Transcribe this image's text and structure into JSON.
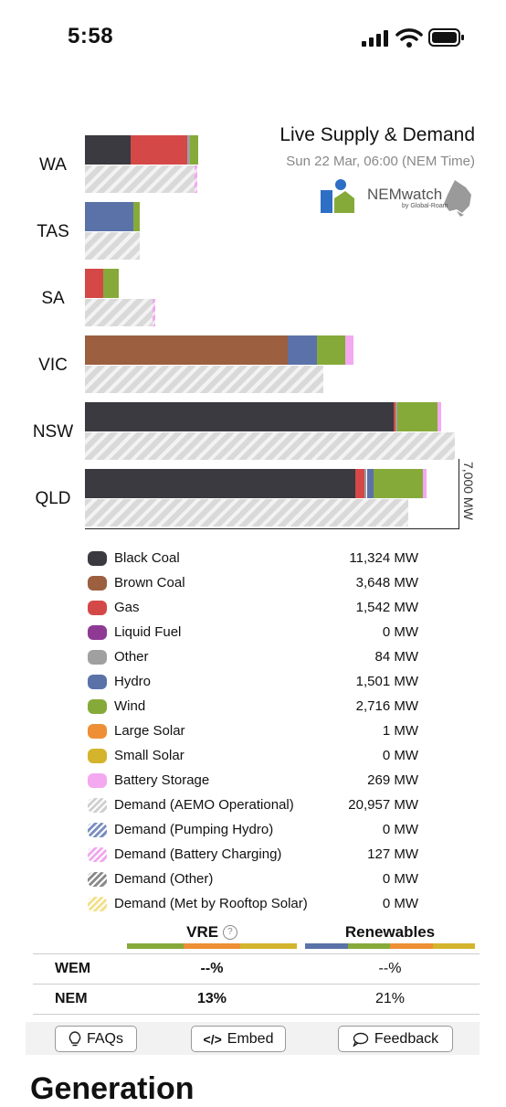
{
  "status_bar": {
    "time": "5:58"
  },
  "chart": {
    "title": "Live Supply & Demand",
    "subtitle": "Sun 22 Mar, 06:00 (NEM Time)",
    "logo_text": "NEMwatch",
    "logo_sub": "by Global-Roam",
    "axis_label": "7,000 MW",
    "colors": {
      "black_coal": "#3a3a40",
      "brown_coal": "#9c5f3f",
      "gas": "#d44848",
      "liquid_fuel": "#8e3a94",
      "other": "#a0a0a0",
      "hydro": "#5a72a8",
      "wind": "#86aa3a",
      "large_solar": "#ee8f35",
      "small_solar": "#d4b42c",
      "battery": "#f3a8f0"
    }
  },
  "chart_data": {
    "type": "bar",
    "axis_max_mw": 7000,
    "categories": [
      "WA",
      "TAS",
      "SA",
      "VIC",
      "NSW",
      "QLD"
    ],
    "supply": [
      {
        "region": "WA",
        "segments": [
          {
            "fuel": "black_coal",
            "mw": 860
          },
          {
            "fuel": "gas",
            "mw": 1060
          },
          {
            "fuel": "other",
            "mw": 40
          },
          {
            "fuel": "wind",
            "mw": 160
          }
        ]
      },
      {
        "region": "TAS",
        "segments": [
          {
            "fuel": "hydro",
            "mw": 900
          },
          {
            "fuel": "wind",
            "mw": 120
          }
        ]
      },
      {
        "region": "SA",
        "segments": [
          {
            "fuel": "gas",
            "mw": 340
          },
          {
            "fuel": "wind",
            "mw": 290
          }
        ]
      },
      {
        "region": "VIC",
        "segments": [
          {
            "fuel": "brown_coal",
            "mw": 3800
          },
          {
            "fuel": "hydro",
            "mw": 540
          },
          {
            "fuel": "wind",
            "mw": 540
          },
          {
            "fuel": "battery",
            "mw": 150
          }
        ]
      },
      {
        "region": "NSW",
        "segments": [
          {
            "fuel": "black_coal",
            "mw": 5780
          },
          {
            "fuel": "gas",
            "mw": 40
          },
          {
            "fuel": "other",
            "mw": 30
          },
          {
            "fuel": "wind",
            "mw": 760
          },
          {
            "fuel": "battery",
            "mw": 60
          }
        ]
      },
      {
        "region": "QLD",
        "segments": [
          {
            "fuel": "black_coal",
            "mw": 5060
          },
          {
            "fuel": "gas",
            "mw": 170
          },
          {
            "fuel": "other",
            "mw": 50
          },
          {
            "fuel": "hydro",
            "mw": 130
          },
          {
            "fuel": "wind",
            "mw": 930
          },
          {
            "fuel": "battery",
            "mw": 60
          }
        ]
      }
    ],
    "demand": [
      {
        "region": "WA",
        "mw": 2050,
        "battery_charging_mw": 60
      },
      {
        "region": "TAS",
        "mw": 1020,
        "battery_charging_mw": 0
      },
      {
        "region": "SA",
        "mw": 1270,
        "battery_charging_mw": 40
      },
      {
        "region": "VIC",
        "mw": 4460,
        "battery_charging_mw": 0
      },
      {
        "region": "NSW",
        "mw": 6940,
        "battery_charging_mw": 0
      },
      {
        "region": "QLD",
        "mw": 6060,
        "battery_charging_mw": 0
      }
    ]
  },
  "legend": [
    {
      "name": "Black Coal",
      "value": "11,324 MW",
      "color": "#3a3a40",
      "pattern": "solid"
    },
    {
      "name": "Brown Coal",
      "value": "3,648 MW",
      "color": "#9c5f3f",
      "pattern": "solid"
    },
    {
      "name": "Gas",
      "value": "1,542 MW",
      "color": "#d44848",
      "pattern": "solid"
    },
    {
      "name": "Liquid Fuel",
      "value": "0 MW",
      "color": "#8e3a94",
      "pattern": "solid"
    },
    {
      "name": "Other",
      "value": "84 MW",
      "color": "#a0a0a0",
      "pattern": "solid"
    },
    {
      "name": "Hydro",
      "value": "1,501 MW",
      "color": "#5a72a8",
      "pattern": "solid"
    },
    {
      "name": "Wind",
      "value": "2,716 MW",
      "color": "#86aa3a",
      "pattern": "solid"
    },
    {
      "name": "Large Solar",
      "value": "1 MW",
      "color": "#ee8f35",
      "pattern": "solid"
    },
    {
      "name": "Small Solar",
      "value": "0 MW",
      "color": "#d4b42c",
      "pattern": "solid"
    },
    {
      "name": "Battery Storage",
      "value": "269 MW",
      "color": "#f3a8f0",
      "pattern": "solid"
    },
    {
      "name": "Demand (AEMO Operational)",
      "value": "20,957 MW",
      "color": "#cfcfcf",
      "pattern": "hatch"
    },
    {
      "name": "Demand (Pumping Hydro)",
      "value": "0 MW",
      "color": "#7a8fc0",
      "pattern": "hatch"
    },
    {
      "name": "Demand (Battery Charging)",
      "value": "127 MW",
      "color": "#f0a8ee",
      "pattern": "hatch"
    },
    {
      "name": "Demand (Other)",
      "value": "0 MW",
      "color": "#8a8a8a",
      "pattern": "hatch"
    },
    {
      "name": "Demand (Met by Rooftop Solar)",
      "value": "0 MW",
      "color": "#f3e08a",
      "pattern": "hatch"
    }
  ],
  "stats": {
    "vre_label": "VRE",
    "renewables_label": "Renewables",
    "rows": [
      {
        "label": "WEM",
        "vre": "--%",
        "renewables": "--%"
      },
      {
        "label": "NEM",
        "vre": "13%",
        "renewables": "21%"
      }
    ]
  },
  "toolbar": {
    "faqs": "FAQs",
    "embed": "Embed",
    "feedback": "Feedback"
  },
  "section": {
    "heading": "Generation"
  }
}
